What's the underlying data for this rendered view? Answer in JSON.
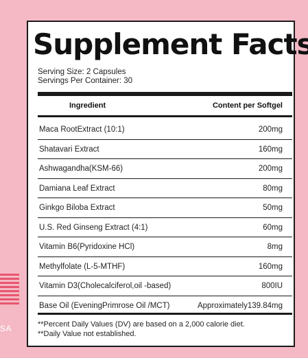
{
  "side": {
    "country_text": "SA",
    "flag_color": "#e8566f"
  },
  "panel": {
    "title": "Supplement Facts",
    "serving_size": "Serving Size: 2 Capsules",
    "servings_per_container": "Servings Per Container: 30",
    "header": {
      "ingredient": "Ingredient",
      "content": "Content per Softgel"
    },
    "rows": [
      {
        "name": "Maca RootExtract (10:1)",
        "amount": "200mg"
      },
      {
        "name": "Shatavari Extract",
        "amount": "160mg"
      },
      {
        "name": "Ashwagandha(KSM-66)",
        "amount": "200mg"
      },
      {
        "name": "Damiana Leaf Extract",
        "amount": "80mg"
      },
      {
        "name": "Ginkgo Biloba Extract",
        "amount": "50mg"
      },
      {
        "name": "U.S. Red Ginseng Extract (4:1)",
        "amount": "60mg"
      },
      {
        "name": "Vitamin B6(Pyridoxine HCl)",
        "amount": "8mg"
      },
      {
        "name": "Methylfolate (L-5-MTHF)",
        "amount": "160mg"
      },
      {
        "name": "Vitamin D3(Cholecalciferol,oil -based)",
        "amount": "800IU"
      },
      {
        "name": "Base Oil (EveningPrimrose Oil /MCT)",
        "amount": "Approximately139.84mg"
      }
    ],
    "footnote_1": "**Percent Daily Values (DV) are based on a 2,000 calorie diet.",
    "footnote_2": "**Daily Value not established."
  }
}
